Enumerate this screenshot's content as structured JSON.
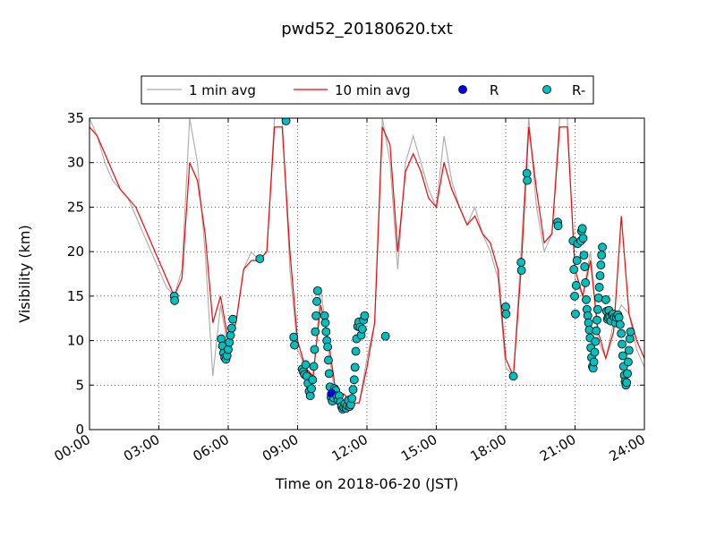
{
  "chart_data": {
    "type": "line",
    "title": "pwd52_20180620.txt",
    "xlabel": "Time on 2018-06-20 (JST)",
    "ylabel": "Visibility (km)",
    "xlim": [
      "00:00",
      "24:00"
    ],
    "ylim": [
      0,
      35
    ],
    "grid": true,
    "legend_position": "top-center",
    "x_ticks": [
      "00:00",
      "03:00",
      "06:00",
      "09:00",
      "12:00",
      "15:00",
      "18:00",
      "21:00",
      "24:00"
    ],
    "y_ticks": [
      0,
      5,
      10,
      15,
      20,
      25,
      30,
      35
    ],
    "colors": {
      "one_min": "#aaaaaa",
      "ten_min": "#ff0000",
      "R": "#0000ff",
      "R_minus": "#00bfbf"
    },
    "series": [
      {
        "name": "1 min avg",
        "style": "line",
        "x": [
          "00:00",
          "00:20",
          "00:40",
          "01:00",
          "01:20",
          "01:40",
          "02:00",
          "02:20",
          "02:40",
          "03:00",
          "03:20",
          "03:40",
          "04:00",
          "04:20",
          "04:40",
          "05:00",
          "05:20",
          "05:40",
          "06:00",
          "06:20",
          "06:40",
          "07:00",
          "07:20",
          "07:40",
          "08:00",
          "08:20",
          "08:40",
          "09:00",
          "09:20",
          "09:40",
          "10:00",
          "10:20",
          "10:40",
          "11:00",
          "11:20",
          "11:40",
          "12:00",
          "12:20",
          "12:40",
          "13:00",
          "13:20",
          "13:40",
          "14:00",
          "14:20",
          "14:40",
          "15:00",
          "15:20",
          "15:40",
          "16:00",
          "16:20",
          "16:40",
          "17:00",
          "17:20",
          "17:40",
          "18:00",
          "18:20",
          "18:40",
          "19:00",
          "19:20",
          "19:40",
          "20:00",
          "20:20",
          "20:40",
          "21:00",
          "21:20",
          "21:40",
          "22:00",
          "22:20",
          "22:40",
          "23:00",
          "23:20",
          "23:40",
          "24:00"
        ],
        "values": [
          35,
          33,
          30,
          28,
          27,
          26,
          24,
          22,
          20,
          18,
          16,
          15,
          18,
          35,
          30,
          20,
          6,
          14,
          9,
          12,
          18,
          20,
          19,
          20,
          35,
          35,
          18,
          9,
          7,
          5,
          16,
          9,
          3,
          4,
          3,
          3,
          8,
          12,
          35,
          30,
          18,
          30,
          33,
          30,
          27,
          25,
          33,
          28,
          25,
          23,
          25,
          22,
          20,
          17,
          7,
          6,
          20,
          35,
          25,
          20,
          22,
          35,
          35,
          17,
          15,
          20,
          10,
          8,
          12,
          14,
          13,
          9,
          7
        ]
      },
      {
        "name": "10 min avg",
        "style": "line",
        "x": [
          "00:00",
          "00:20",
          "00:40",
          "01:00",
          "01:20",
          "01:40",
          "02:00",
          "02:20",
          "02:40",
          "03:00",
          "03:20",
          "03:40",
          "04:00",
          "04:20",
          "04:40",
          "05:00",
          "05:20",
          "05:40",
          "06:00",
          "06:20",
          "06:40",
          "07:00",
          "07:20",
          "07:40",
          "08:00",
          "08:20",
          "08:40",
          "09:00",
          "09:20",
          "09:40",
          "10:00",
          "10:20",
          "10:40",
          "11:00",
          "11:20",
          "11:40",
          "12:00",
          "12:20",
          "12:40",
          "13:00",
          "13:20",
          "13:40",
          "14:00",
          "14:20",
          "14:40",
          "15:00",
          "15:20",
          "15:40",
          "16:00",
          "16:20",
          "16:40",
          "17:00",
          "17:20",
          "17:40",
          "18:00",
          "18:20",
          "18:40",
          "19:00",
          "19:20",
          "19:40",
          "20:00",
          "20:20",
          "20:40",
          "21:00",
          "21:20",
          "21:40",
          "22:00",
          "22:20",
          "22:40",
          "23:00",
          "23:20",
          "23:40",
          "24:00"
        ],
        "values": [
          34,
          33,
          31,
          29,
          27,
          26,
          25,
          23,
          21,
          19,
          17,
          15,
          17,
          30,
          28,
          22,
          12,
          15,
          10,
          12,
          18,
          19,
          19,
          20,
          34,
          34,
          20,
          10,
          7,
          6,
          14,
          10,
          4,
          4,
          3,
          3,
          7,
          12,
          34,
          32,
          20,
          29,
          31,
          29,
          26,
          25,
          30,
          27,
          25,
          23,
          24,
          22,
          21,
          18,
          8,
          6,
          18,
          34,
          27,
          21,
          22,
          34,
          34,
          18,
          15,
          19,
          11,
          8,
          11,
          24,
          13,
          10,
          8
        ]
      },
      {
        "name": "R",
        "style": "markers",
        "points": [
          {
            "x": "10:25",
            "y": 4.0
          },
          {
            "x": "10:29",
            "y": 4.2
          }
        ]
      },
      {
        "name": "R-",
        "style": "markers",
        "points": [
          {
            "x": "03:40",
            "y": 15.0
          },
          {
            "x": "03:41",
            "y": 14.5
          },
          {
            "x": "05:42",
            "y": 10.2
          },
          {
            "x": "05:45",
            "y": 9.4
          },
          {
            "x": "05:48",
            "y": 8.6
          },
          {
            "x": "05:51",
            "y": 8.1
          },
          {
            "x": "05:54",
            "y": 7.9
          },
          {
            "x": "05:57",
            "y": 8.3
          },
          {
            "x": "06:00",
            "y": 9.0
          },
          {
            "x": "06:03",
            "y": 9.8
          },
          {
            "x": "06:06",
            "y": 10.6
          },
          {
            "x": "06:09",
            "y": 11.4
          },
          {
            "x": "06:12",
            "y": 12.4
          },
          {
            "x": "07:22",
            "y": 19.2
          },
          {
            "x": "08:30",
            "y": 34.7
          },
          {
            "x": "08:50",
            "y": 10.4
          },
          {
            "x": "08:52",
            "y": 9.5
          },
          {
            "x": "09:12",
            "y": 6.8
          },
          {
            "x": "09:15",
            "y": 6.5
          },
          {
            "x": "09:18",
            "y": 6.2
          },
          {
            "x": "09:21",
            "y": 7.3
          },
          {
            "x": "09:24",
            "y": 6.0
          },
          {
            "x": "09:27",
            "y": 5.2
          },
          {
            "x": "09:30",
            "y": 4.3
          },
          {
            "x": "09:33",
            "y": 3.8
          },
          {
            "x": "09:36",
            "y": 4.6
          },
          {
            "x": "09:39",
            "y": 5.6
          },
          {
            "x": "09:42",
            "y": 7.1
          },
          {
            "x": "09:44",
            "y": 9.0
          },
          {
            "x": "09:46",
            "y": 11.0
          },
          {
            "x": "09:48",
            "y": 12.8
          },
          {
            "x": "09:50",
            "y": 14.4
          },
          {
            "x": "09:52",
            "y": 15.6
          },
          {
            "x": "10:10",
            "y": 12.8
          },
          {
            "x": "10:12",
            "y": 12.0
          },
          {
            "x": "10:14",
            "y": 11.0
          },
          {
            "x": "10:16",
            "y": 10.0
          },
          {
            "x": "10:18",
            "y": 9.3
          },
          {
            "x": "10:20",
            "y": 7.8
          },
          {
            "x": "10:22",
            "y": 6.3
          },
          {
            "x": "10:24",
            "y": 4.8
          },
          {
            "x": "10:27",
            "y": 3.6
          },
          {
            "x": "10:30",
            "y": 3.2
          },
          {
            "x": "10:33",
            "y": 3.6
          },
          {
            "x": "10:36",
            "y": 4.6
          },
          {
            "x": "10:39",
            "y": 4.4
          },
          {
            "x": "10:42",
            "y": 3.8
          },
          {
            "x": "10:45",
            "y": 3.3
          },
          {
            "x": "10:48",
            "y": 3.8
          },
          {
            "x": "10:51",
            "y": 3.1
          },
          {
            "x": "10:54",
            "y": 2.6
          },
          {
            "x": "10:57",
            "y": 2.3
          },
          {
            "x": "11:00",
            "y": 2.5
          },
          {
            "x": "11:03",
            "y": 2.9
          },
          {
            "x": "11:06",
            "y": 2.4
          },
          {
            "x": "11:09",
            "y": 2.7
          },
          {
            "x": "11:12",
            "y": 3.3
          },
          {
            "x": "11:15",
            "y": 2.6
          },
          {
            "x": "11:18",
            "y": 2.8
          },
          {
            "x": "11:21",
            "y": 3.5
          },
          {
            "x": "11:24",
            "y": 4.5
          },
          {
            "x": "11:27",
            "y": 5.6
          },
          {
            "x": "11:29",
            "y": 7.0
          },
          {
            "x": "11:31",
            "y": 8.8
          },
          {
            "x": "11:33",
            "y": 10.2
          },
          {
            "x": "11:36",
            "y": 11.6
          },
          {
            "x": "11:39",
            "y": 12.1
          },
          {
            "x": "11:42",
            "y": 11.5
          },
          {
            "x": "11:45",
            "y": 10.6
          },
          {
            "x": "11:48",
            "y": 11.3
          },
          {
            "x": "11:51",
            "y": 12.3
          },
          {
            "x": "11:54",
            "y": 12.8
          },
          {
            "x": "12:48",
            "y": 10.5
          },
          {
            "x": "18:00",
            "y": 13.8
          },
          {
            "x": "18:01",
            "y": 13.0
          },
          {
            "x": "18:20",
            "y": 6.0
          },
          {
            "x": "18:40",
            "y": 18.8
          },
          {
            "x": "18:41",
            "y": 17.9
          },
          {
            "x": "18:55",
            "y": 28.8
          },
          {
            "x": "18:56",
            "y": 28.0
          },
          {
            "x": "20:15",
            "y": 23.3
          },
          {
            "x": "20:16",
            "y": 22.9
          },
          {
            "x": "20:55",
            "y": 21.2
          },
          {
            "x": "20:57",
            "y": 18.0
          },
          {
            "x": "20:59",
            "y": 15.0
          },
          {
            "x": "21:01",
            "y": 13.0
          },
          {
            "x": "21:03",
            "y": 16.2
          },
          {
            "x": "21:05",
            "y": 19.0
          },
          {
            "x": "21:07",
            "y": 20.9
          },
          {
            "x": "21:15",
            "y": 21.2
          },
          {
            "x": "21:17",
            "y": 22.3
          },
          {
            "x": "21:19",
            "y": 22.6
          },
          {
            "x": "21:21",
            "y": 21.5
          },
          {
            "x": "21:23",
            "y": 19.6
          },
          {
            "x": "21:25",
            "y": 18.3
          },
          {
            "x": "21:27",
            "y": 16.5
          },
          {
            "x": "21:29",
            "y": 14.6
          },
          {
            "x": "21:31",
            "y": 13.5
          },
          {
            "x": "21:33",
            "y": 12.8
          },
          {
            "x": "21:35",
            "y": 12.0
          },
          {
            "x": "21:37",
            "y": 11.2
          },
          {
            "x": "21:39",
            "y": 10.3
          },
          {
            "x": "21:41",
            "y": 9.2
          },
          {
            "x": "21:43",
            "y": 8.1
          },
          {
            "x": "21:45",
            "y": 7.1
          },
          {
            "x": "21:47",
            "y": 6.9
          },
          {
            "x": "21:49",
            "y": 7.6
          },
          {
            "x": "21:51",
            "y": 8.7
          },
          {
            "x": "21:53",
            "y": 9.9
          },
          {
            "x": "21:55",
            "y": 11.1
          },
          {
            "x": "21:57",
            "y": 12.3
          },
          {
            "x": "21:59",
            "y": 13.5
          },
          {
            "x": "22:01",
            "y": 14.8
          },
          {
            "x": "22:03",
            "y": 16.0
          },
          {
            "x": "22:05",
            "y": 17.3
          },
          {
            "x": "22:07",
            "y": 18.5
          },
          {
            "x": "22:09",
            "y": 19.6
          },
          {
            "x": "22:11",
            "y": 20.5
          },
          {
            "x": "22:20",
            "y": 14.6
          },
          {
            "x": "22:22",
            "y": 13.3
          },
          {
            "x": "22:24",
            "y": 12.4
          },
          {
            "x": "22:26",
            "y": 12.6
          },
          {
            "x": "22:28",
            "y": 13.4
          },
          {
            "x": "22:30",
            "y": 12.7
          },
          {
            "x": "22:33",
            "y": 12.2
          },
          {
            "x": "22:36",
            "y": 12.9
          },
          {
            "x": "22:39",
            "y": 13.0
          },
          {
            "x": "22:42",
            "y": 12.6
          },
          {
            "x": "22:45",
            "y": 12.0
          },
          {
            "x": "22:48",
            "y": 12.6
          },
          {
            "x": "22:51",
            "y": 12.9
          },
          {
            "x": "22:54",
            "y": 12.6
          },
          {
            "x": "22:57",
            "y": 11.8
          },
          {
            "x": "23:00",
            "y": 10.8
          },
          {
            "x": "23:02",
            "y": 9.6
          },
          {
            "x": "23:04",
            "y": 8.3
          },
          {
            "x": "23:06",
            "y": 7.1
          },
          {
            "x": "23:08",
            "y": 6.1
          },
          {
            "x": "23:10",
            "y": 5.4
          },
          {
            "x": "23:12",
            "y": 5.0
          },
          {
            "x": "23:14",
            "y": 5.3
          },
          {
            "x": "23:16",
            "y": 6.3
          },
          {
            "x": "23:18",
            "y": 7.6
          },
          {
            "x": "23:20",
            "y": 8.9
          },
          {
            "x": "23:22",
            "y": 10.2
          },
          {
            "x": "23:24",
            "y": 11.0
          }
        ]
      }
    ]
  }
}
